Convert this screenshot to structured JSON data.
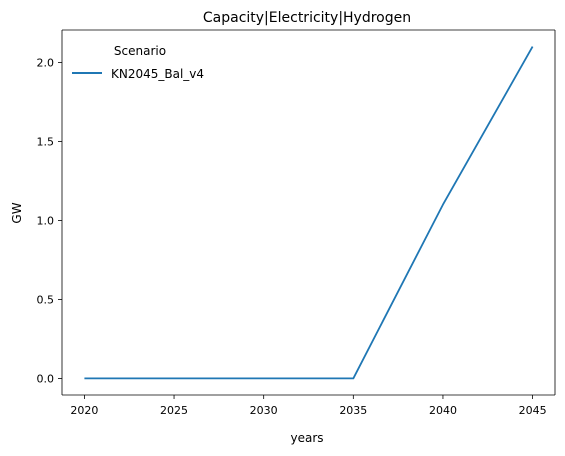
{
  "chart_data": {
    "type": "line",
    "title": "Capacity|Electricity|Hydrogen",
    "xlabel": "years",
    "ylabel": "GW",
    "x": [
      2020,
      2025,
      2030,
      2035,
      2040,
      2045
    ],
    "xticks": [
      "2020",
      "2025",
      "2030",
      "2035",
      "2040",
      "2045"
    ],
    "yticks": [
      "0.0",
      "0.5",
      "1.0",
      "1.5",
      "2.0"
    ],
    "xlim": [
      2018.75,
      2046.25
    ],
    "ylim": [
      -0.105,
      2.205
    ],
    "grid": false,
    "legend": {
      "title": "Scenario",
      "placement": "top-left"
    },
    "series": [
      {
        "name": "KN2045_Bal_v4",
        "color": "#1f77b4",
        "values": [
          0.0,
          0.0,
          0.0,
          0.0,
          1.1,
          2.1
        ]
      }
    ]
  }
}
